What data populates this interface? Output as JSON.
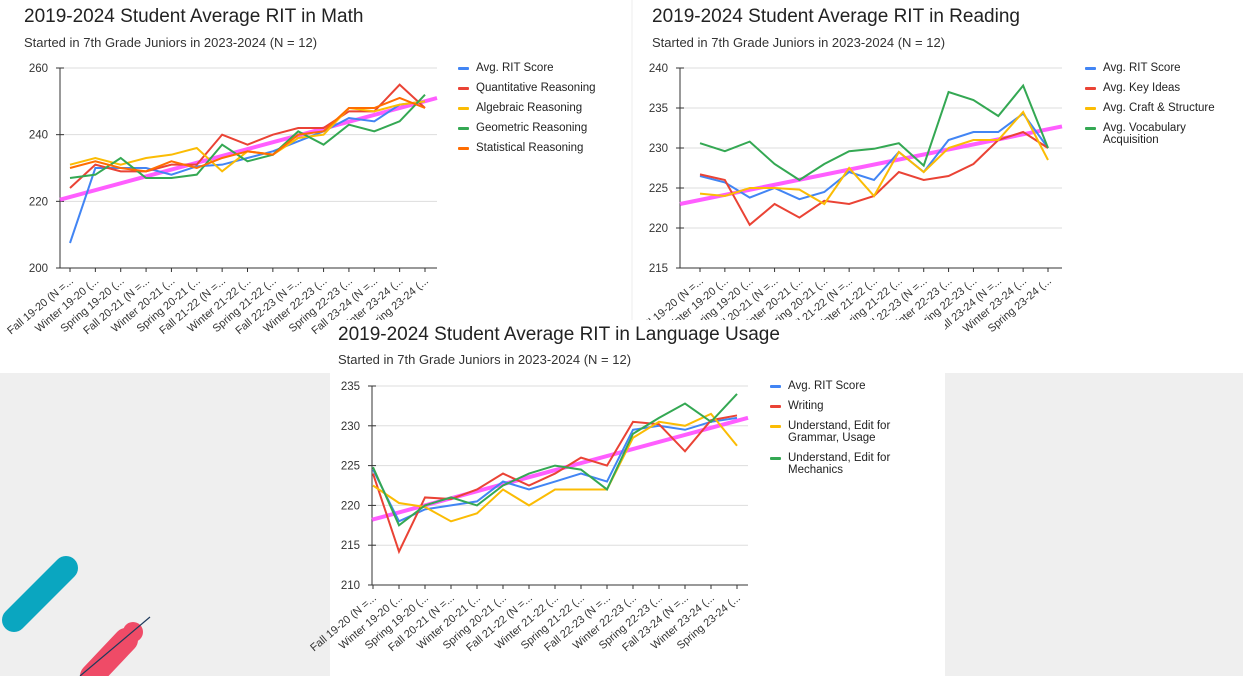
{
  "chart_data": [
    {
      "type": "line",
      "title": "2019-2024 Student Average RIT in Math",
      "subtitle": "Started in 7th Grade Juniors in 2023-2024 (N = 12)",
      "categories": [
        "Fall 19-20 (N =...",
        "Winter 19-20 (...",
        "Spring 19-20 (...",
        "Fall 20-21 (N =...",
        "Winter 20-21 (...",
        "Spring 20-21 (...",
        "Fall 21-22 (N =...",
        "Winter 21-22 (...",
        "Spring 21-22 (...",
        "Fall 22-23 (N =...",
        "Winter 22-23 (...",
        "Spring 22-23 (...",
        "Fall 23-24 (N =...",
        "Winter 23-24 (...",
        "Spring 23-24 (..."
      ],
      "series": [
        {
          "name": "Avg. RIT Score",
          "color": "#4285f4",
          "values": [
            207.5,
            230,
            230,
            230,
            228,
            230.5,
            231,
            233,
            235,
            238,
            241,
            245,
            244,
            249,
            250
          ]
        },
        {
          "name": "Quantitative Reasoning",
          "color": "#ea4335",
          "values": [
            224,
            231,
            229,
            229,
            231,
            231,
            240,
            237,
            240,
            242,
            242,
            247,
            247,
            255,
            248
          ]
        },
        {
          "name": "Algebraic Reasoning",
          "color": "#fbbc04",
          "values": [
            231,
            233,
            231,
            233,
            234,
            236,
            229,
            235,
            234,
            239,
            240,
            248,
            247,
            249,
            250
          ]
        },
        {
          "name": "Geometric Reasoning",
          "color": "#34a853",
          "values": [
            227,
            228,
            233,
            227,
            227,
            228,
            237,
            232,
            234,
            241,
            237,
            243,
            241,
            244,
            252
          ]
        },
        {
          "name": "Statistical Reasoning",
          "color": "#ff6d01",
          "values": [
            230,
            232,
            230,
            229,
            232,
            230,
            233,
            235,
            234,
            240,
            241,
            248,
            248,
            251,
            248
          ]
        }
      ],
      "trendline": {
        "color": "#ff4dff",
        "values": [
          220.5,
          251
        ]
      },
      "ylim": [
        200,
        260
      ],
      "yticks": [
        200,
        220,
        240,
        260
      ],
      "grid": true,
      "legend": "right"
    },
    {
      "type": "line",
      "title": "2019-2024 Student Average RIT in Reading",
      "subtitle": "Started in 7th Grade Juniors in 2023-2024 (N = 12)",
      "categories": [
        "Fall 19-20 (N =...",
        "Winter 19-20 (...",
        "Spring 19-20 (...",
        "Fall 20-21 (N =...",
        "Winter 20-21 (...",
        "Spring 20-21 (...",
        "Fall 21-22 (N =...",
        "Winter 21-22 (...",
        "Spring 21-22 (...",
        "Fall 22-23 (N =...",
        "Winter 22-23 (...",
        "Spring 22-23 (...",
        "Fall 23-24 (N =...",
        "Winter 23-24 (...",
        "Spring 23-24 (..."
      ],
      "series": [
        {
          "name": "Avg. RIT Score",
          "color": "#4285f4",
          "values": [
            226.5,
            225.7,
            223.8,
            225,
            223.6,
            224.5,
            227,
            226,
            229.5,
            227,
            231,
            232,
            232,
            234.3,
            230
          ]
        },
        {
          "name": "Avg. Key Ideas",
          "color": "#ea4335",
          "values": [
            226.7,
            226,
            220.4,
            223,
            221.3,
            223.4,
            223,
            224,
            227,
            226,
            226.5,
            228,
            231,
            232,
            230
          ]
        },
        {
          "name": "Avg. Craft & Structure",
          "color": "#fbbc04",
          "values": [
            224.3,
            224,
            225,
            225,
            224.8,
            223,
            227.5,
            224,
            229.5,
            227,
            230,
            231,
            231,
            234.5,
            228.5
          ]
        },
        {
          "name": "Avg. Vocabulary Acquisition",
          "color": "#34a853",
          "values": [
            230.6,
            229.6,
            230.8,
            228,
            226,
            228,
            229.6,
            229.9,
            230.6,
            227.8,
            237,
            236,
            234,
            237.8,
            230
          ]
        }
      ],
      "trendline": {
        "color": "#ff4dff",
        "values": [
          223,
          232.7
        ]
      },
      "ylim": [
        215,
        240
      ],
      "yticks": [
        215,
        220,
        225,
        230,
        235,
        240
      ],
      "grid": true,
      "legend": "right"
    },
    {
      "type": "line",
      "title": "2019-2024 Student Average RIT in Language Usage",
      "subtitle": "Started in 7th Grade Juniors in 2023-2024 (N = 12)",
      "categories": [
        "Fall 19-20 (N =...",
        "Winter 19-20 (...",
        "Spring 19-20 (...",
        "Fall 20-21 (N =...",
        "Winter 20-21 (...",
        "Spring 20-21 (...",
        "Fall 21-22 (N =...",
        "Winter 21-22 (...",
        "Spring 21-22 (...",
        "Fall 22-23 (N =...",
        "Winter 22-23 (...",
        "Spring 22-23 (...",
        "Fall 23-24 (N =...",
        "Winter 23-24 (...",
        "Spring 23-24 (..."
      ],
      "series": [
        {
          "name": "Avg. RIT Score",
          "color": "#4285f4",
          "values": [
            224.5,
            218,
            219.5,
            220,
            220.5,
            223,
            222,
            223,
            224,
            223,
            229.5,
            230,
            229.5,
            230.5,
            231
          ]
        },
        {
          "name": "Writing",
          "color": "#ea4335",
          "values": [
            224,
            214.2,
            221,
            220.8,
            222,
            224,
            222.5,
            224,
            226,
            225,
            230.5,
            230.2,
            226.8,
            230.7,
            231.3
          ]
        },
        {
          "name": "Understand, Edit for Grammar, Usage",
          "color": "#fbbc04",
          "values": [
            222.5,
            220.3,
            219.8,
            218,
            219,
            222,
            220,
            222,
            222,
            222,
            228.5,
            230.5,
            230,
            231.5,
            227.5
          ]
        },
        {
          "name": "Understand, Edit for Mechanics",
          "color": "#34a853",
          "values": [
            224.8,
            217.5,
            220,
            221,
            220,
            222.5,
            224,
            225,
            224.5,
            222,
            229,
            231,
            232.8,
            230.5,
            234
          ]
        }
      ],
      "trendline": {
        "color": "#ff4dff",
        "values": [
          218.2,
          231
        ]
      },
      "ylim": [
        210,
        235
      ],
      "yticks": [
        210,
        215,
        220,
        225,
        230,
        235
      ],
      "grid": true,
      "legend": "right"
    }
  ]
}
